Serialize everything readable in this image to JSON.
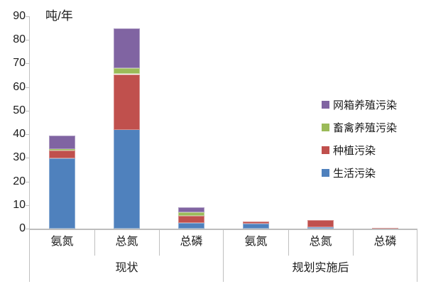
{
  "chart_data": {
    "type": "bar",
    "stacked": true,
    "title": "",
    "ylabel": "吨/年",
    "xlabel": "",
    "ylim": [
      0,
      90
    ],
    "ytick_step": 10,
    "yticks": [
      0,
      10,
      20,
      30,
      40,
      50,
      60,
      70,
      80,
      90
    ],
    "grid": false,
    "legend_position": "right",
    "axis_color": "#bfbfbf",
    "text_color": "#1a1a1a",
    "groups": [
      {
        "label": "现状",
        "categories": [
          "氨氮",
          "总氮",
          "总磷"
        ]
      },
      {
        "label": "规划实施后",
        "categories": [
          "氨氮",
          "总氮",
          "总磷"
        ]
      }
    ],
    "categories_flat": [
      "氨氮",
      "总氮",
      "总磷",
      "氨氮",
      "总氮",
      "总磷"
    ],
    "series": [
      {
        "name": "生活污染",
        "color": "#4f81bd",
        "values": [
          29.7,
          42.0,
          2.3,
          2.0,
          0.6,
          0.0
        ]
      },
      {
        "name": "种植污染",
        "color": "#c0504d",
        "values": [
          3.3,
          23.4,
          3.0,
          0.9,
          3.0,
          0.4
        ]
      },
      {
        "name": "畜禽养殖污染",
        "color": "#9bbb59",
        "values": [
          0.9,
          2.5,
          1.5,
          0.0,
          0.0,
          0.0
        ]
      },
      {
        "name": "网箱养殖污染",
        "color": "#8064a2",
        "values": [
          5.6,
          16.9,
          2.1,
          0.0,
          0.0,
          0.0
        ]
      }
    ],
    "totals": [
      39.5,
      84.8,
      8.9,
      2.9,
      3.6,
      0.4
    ],
    "legend_order": [
      "网箱养殖污染",
      "畜禽养殖污染",
      "种植污染",
      "生活污染"
    ]
  }
}
